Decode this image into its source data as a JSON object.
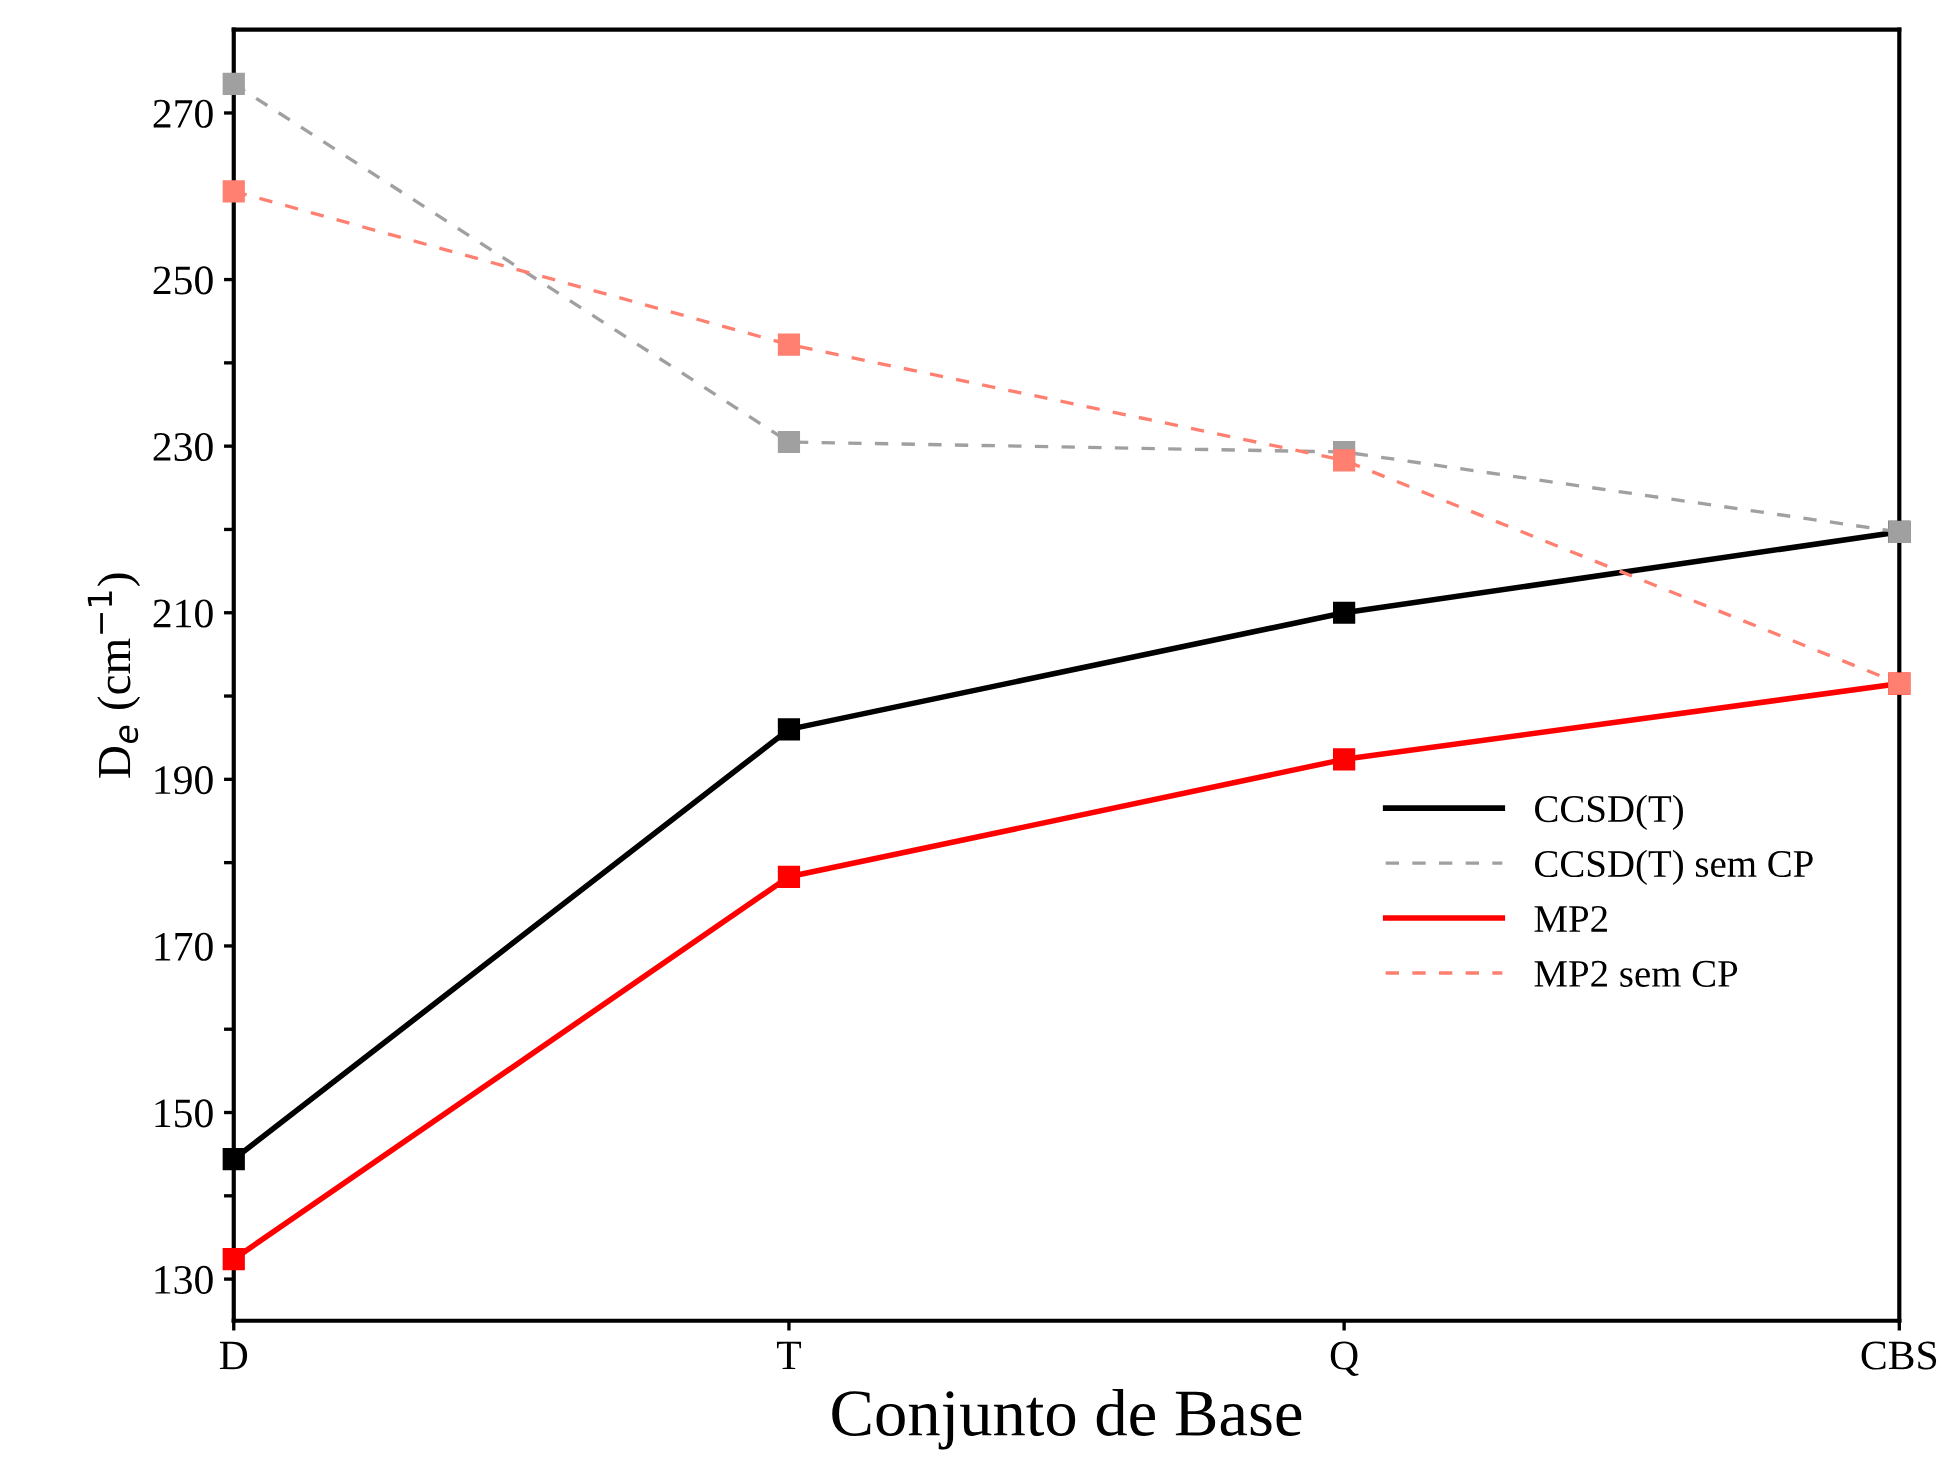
{
  "chart_data": {
    "type": "line",
    "xlabel": "Conjunto de Base",
    "ylabel": "D$_{e}$ (cm$^{−1}$)",
    "categories": [
      "D",
      "T",
      "Q",
      "CBS"
    ],
    "series": [
      {
        "name": "CCSD(T)",
        "color": "#000000",
        "line_style": "solid",
        "values": [
          144.4,
          196,
          210,
          219.7
        ]
      },
      {
        "name": "CCSD(T) sem CP",
        "color": "#a0a0a0",
        "line_style": "dashed",
        "values": [
          273.5,
          230.5,
          229.3,
          219.7
        ]
      },
      {
        "name": "MP2",
        "color": "#ff0000",
        "line_style": "solid",
        "values": [
          132.4,
          178.3,
          192.4,
          201.5
        ]
      },
      {
        "name": "MP2 sem CP",
        "color": "#ff8070",
        "line_style": "dashed",
        "values": [
          260.6,
          242.2,
          228.3,
          201.5
        ]
      }
    ],
    "ylim": [
      125,
      280
    ],
    "yticks": [
      130,
      {
        "value": 140,
        "label": null
      },
      150,
      {
        "value": 160,
        "label": null
      },
      170,
      {
        "value": 180,
        "label": null
      },
      190,
      {
        "value": 200,
        "label": null
      },
      210,
      {
        "value": 220,
        "label": null
      },
      230,
      {
        "value": 240,
        "label": null
      },
      250,
      {
        "value": 260,
        "label": null
      },
      270
    ],
    "marker": "square",
    "grid": false,
    "legend": "right"
  }
}
